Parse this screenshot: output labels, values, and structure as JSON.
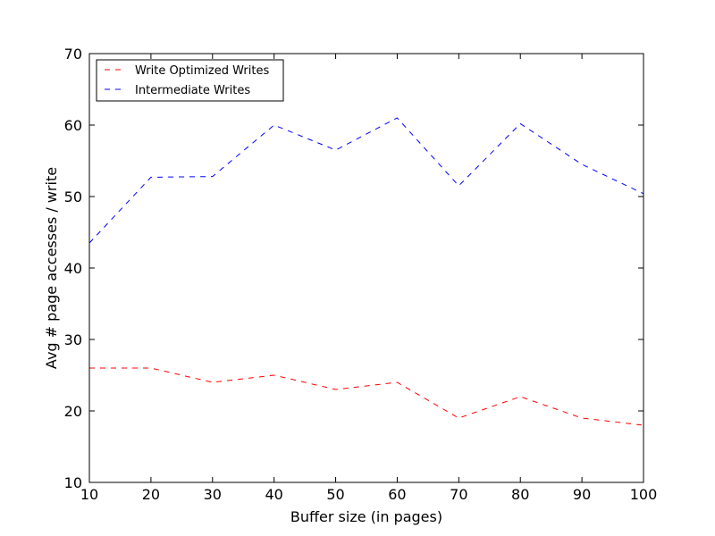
{
  "chart_data": {
    "type": "line",
    "xlabel": "Buffer size (in pages)",
    "ylabel": "Avg # page accesses / write",
    "xlim": [
      10,
      100
    ],
    "ylim": [
      10,
      70
    ],
    "xticks": [
      10,
      20,
      30,
      40,
      50,
      60,
      70,
      80,
      90,
      100
    ],
    "yticks": [
      10,
      20,
      30,
      40,
      50,
      60,
      70
    ],
    "grid": false,
    "legend_position": "top-left",
    "x": [
      10,
      20,
      30,
      40,
      50,
      60,
      70,
      80,
      90,
      100
    ],
    "series": [
      {
        "name": "Write Optimized Writes",
        "color": "#ff0000",
        "line_style": "dashed",
        "values": [
          26,
          26,
          24,
          25,
          23,
          24,
          19,
          22,
          19,
          18
        ]
      },
      {
        "name": "Intermediate Writes",
        "color": "#0000ff",
        "line_style": "dashed",
        "values": [
          43.5,
          52.7,
          52.8,
          60,
          56.5,
          61,
          51.5,
          60.2,
          54.5,
          50.4
        ]
      }
    ]
  }
}
